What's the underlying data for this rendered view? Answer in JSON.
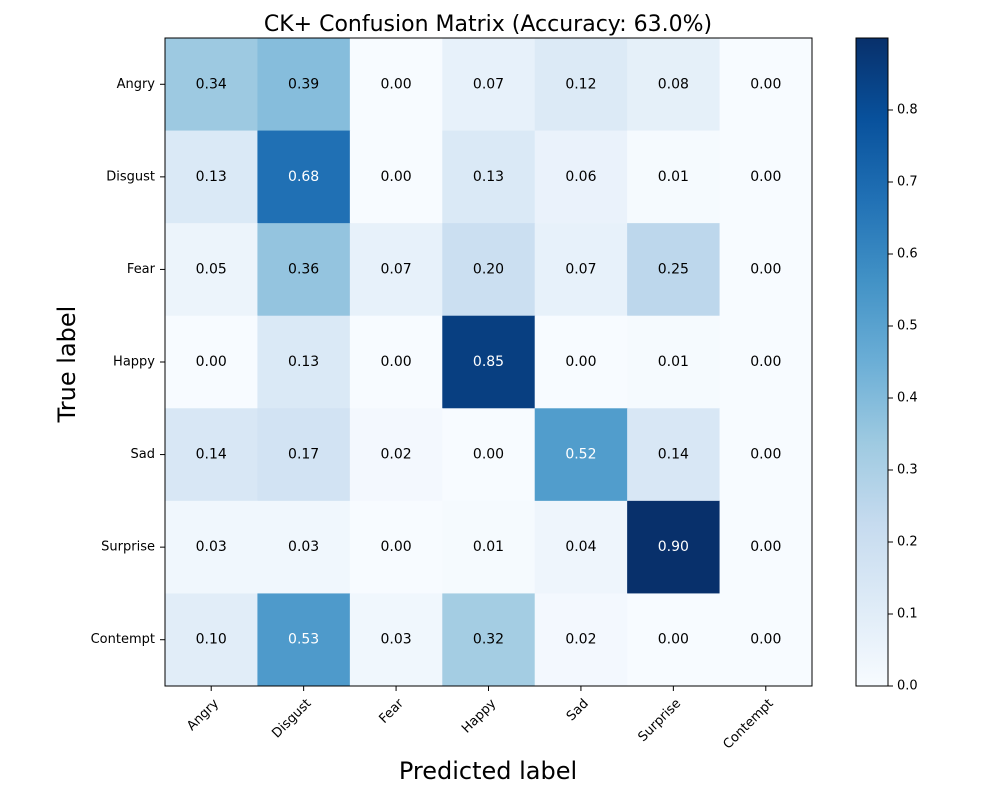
{
  "chart_data": {
    "type": "heatmap",
    "title": "CK+ Confusion Matrix (Accuracy: 63.0%)",
    "xlabel": "Predicted label",
    "ylabel": "True label",
    "x_categories": [
      "Angry",
      "Disgust",
      "Fear",
      "Happy",
      "Sad",
      "Surprise",
      "Contempt"
    ],
    "y_categories": [
      "Angry",
      "Disgust",
      "Fear",
      "Happy",
      "Sad",
      "Surprise",
      "Contempt"
    ],
    "values": [
      [
        0.34,
        0.39,
        0.0,
        0.07,
        0.12,
        0.08,
        0.0
      ],
      [
        0.13,
        0.68,
        0.0,
        0.13,
        0.06,
        0.01,
        0.0
      ],
      [
        0.05,
        0.36,
        0.07,
        0.2,
        0.07,
        0.25,
        0.0
      ],
      [
        0.0,
        0.13,
        0.0,
        0.85,
        0.0,
        0.01,
        0.0
      ],
      [
        0.14,
        0.17,
        0.02,
        0.0,
        0.52,
        0.14,
        0.0
      ],
      [
        0.03,
        0.03,
        0.0,
        0.01,
        0.04,
        0.9,
        0.0
      ],
      [
        0.1,
        0.53,
        0.03,
        0.32,
        0.02,
        0.0,
        0.0
      ]
    ],
    "colormap": "Blues",
    "color_range": [
      0.0,
      0.9
    ],
    "colorbar_ticks": [
      0.0,
      0.1,
      0.2,
      0.3,
      0.4,
      0.5,
      0.6,
      0.7,
      0.8
    ],
    "colorbar_tick_labels": [
      "0.0",
      "0.1",
      "0.2",
      "0.3",
      "0.4",
      "0.5",
      "0.6",
      "0.7",
      "0.8"
    ],
    "value_format_decimals": 2,
    "text_color_threshold": 0.45,
    "text_color_light": "#ffffff",
    "text_color_dark": "#000000",
    "x_tick_rotation_deg": 45
  }
}
